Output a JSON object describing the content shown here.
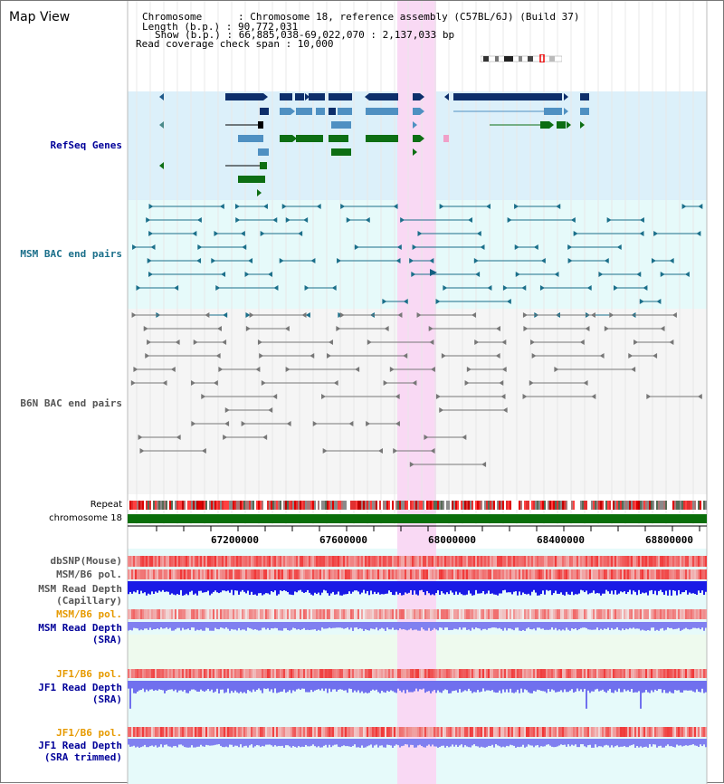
{
  "window_title": "Map View",
  "info": {
    "chromosome": "Chromosome      : Chromosome 18, reference assembly (C57BL/6J) (Build 37)",
    "length": "Length (b.p.) : 90,772,031",
    "show": "Show (b.p.) : 66,885,038-69,022,070 : 2,137,033 bp",
    "read_check": "Read coverage check span : 10,000"
  },
  "tracks": {
    "refseq": "RefSeq Genes",
    "msm_bac": "MSM BAC end pairs",
    "b6n_bac": "B6N BAC end pairs",
    "repeat": "Repeat",
    "chromosome": "chromosome 18",
    "dbsnp": "dbSNP(Mouse)",
    "msm_b6_pol": "MSM/B6 pol.",
    "msm_read_depth_cap_1": "MSM Read Depth",
    "msm_read_depth_cap_2": "(Capillary)",
    "msm_b6_pol_2": "MSM/B6 pol.",
    "msm_read_depth_sra_1": "MSM Read Depth",
    "msm_read_depth_sra_2": "(SRA)",
    "jf1_b6_pol": "JF1/B6 pol.",
    "jf1_read_depth_sra_1": "JF1 Read Depth",
    "jf1_read_depth_sra_2": "(SRA)",
    "jf1_b6_pol_2": "JF1/B6 pol.",
    "jf1_read_depth_trim_1": "JF1 Read Depth",
    "jf1_read_depth_trim_2": "(SRA trimmed)"
  },
  "axis_ticks": [
    "67200000",
    "67600000",
    "68000000",
    "68400000",
    "68800000"
  ],
  "colors": {
    "refseq_bg": "#dcf0fa",
    "msm_bg": "#e6fafa",
    "b6n_bg": "#f5f5f5",
    "highlight": "#f9d9f4",
    "gene_dark": "#0d2f6b",
    "gene_mid": "#4f90c2",
    "gene_green": "#0d6e13",
    "msm_line": "#1b6f8a",
    "b6n_line": "#666666",
    "chrom_green": "#0a6e0a",
    "label_blue": "#000099",
    "label_orange": "#e69a00",
    "label_teal": "#1b6f8a",
    "label_gray": "#555555"
  }
}
